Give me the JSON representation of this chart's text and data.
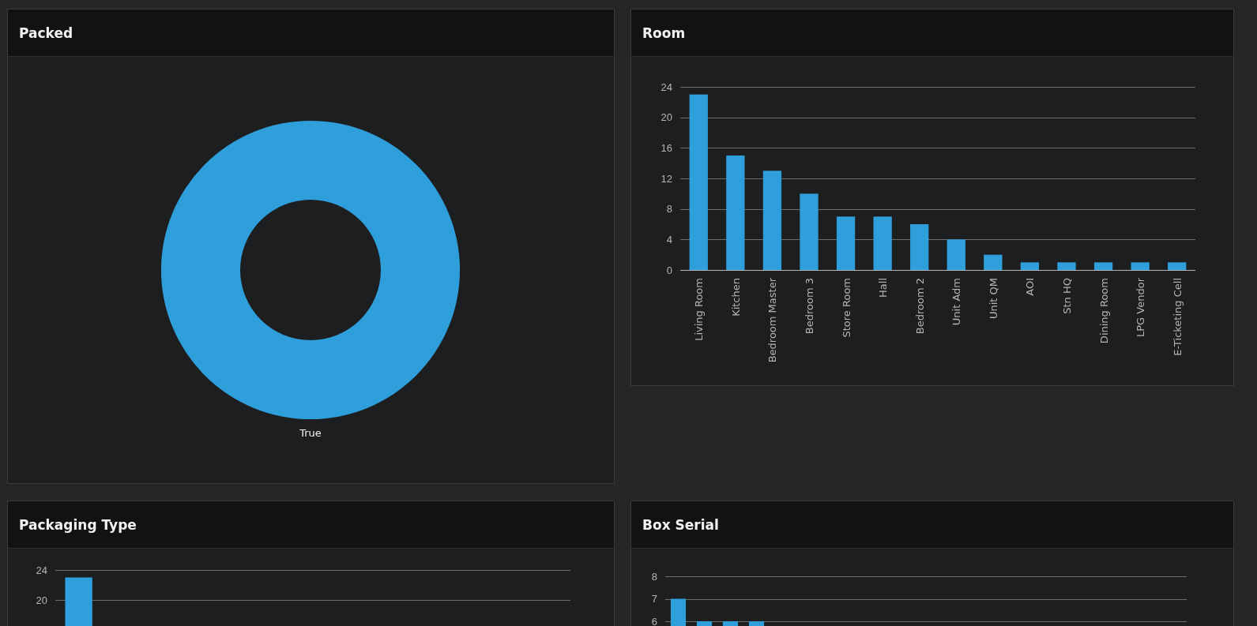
{
  "chart_data": [
    {
      "type": "donut",
      "title": "Packed",
      "categories": [
        "True"
      ],
      "values": [
        100
      ],
      "colors": [
        "#2f9fdc"
      ]
    },
    {
      "type": "bar",
      "title": "Room",
      "categories": [
        "Living Room",
        "Kitchen",
        "Bedroom Master",
        "Bedroom 3",
        "Store Room",
        "Hall",
        "Bedroom 2",
        "Unit Adm",
        "Unit QM",
        "AOI",
        "Stn HQ",
        "Dining Room",
        "LPG Vendor",
        "E-Ticketing Cell"
      ],
      "values": [
        23,
        15,
        13,
        10,
        7,
        7,
        6,
        4,
        2,
        1,
        1,
        1,
        1,
        1
      ],
      "color": "#2f9fdc",
      "ylim": [
        0,
        24
      ],
      "yticks": [
        0,
        4,
        8,
        12,
        16,
        20,
        24
      ],
      "grid": "y"
    },
    {
      "type": "bar",
      "title": "Packaging Type",
      "categories": [
        null,
        null,
        null,
        null,
        null,
        null,
        null,
        null,
        null,
        null,
        null
      ],
      "values": [
        23,
        null,
        null,
        null,
        null,
        null,
        null,
        null,
        null,
        null,
        null
      ],
      "color": "#2f9fdc",
      "ylim": [
        0,
        24
      ],
      "yticks": [
        20,
        24
      ],
      "grid": "y",
      "tick_labels": "y"
    },
    {
      "type": "bar",
      "title": "Box Serial",
      "categories": [
        null,
        null,
        null,
        null,
        null,
        null,
        null,
        null,
        null,
        null,
        null,
        null,
        null,
        null,
        null,
        null,
        null,
        null,
        null,
        null
      ],
      "values": [
        7,
        6,
        6,
        6,
        null,
        null,
        null,
        null,
        null,
        null,
        null,
        null,
        null,
        null,
        null,
        null,
        null,
        null,
        null,
        null
      ],
      "color": "#2f9fdc",
      "ylim": [
        0,
        8
      ],
      "yticks": [
        6,
        7,
        8
      ],
      "grid": "y",
      "tick_labels": "y"
    }
  ]
}
